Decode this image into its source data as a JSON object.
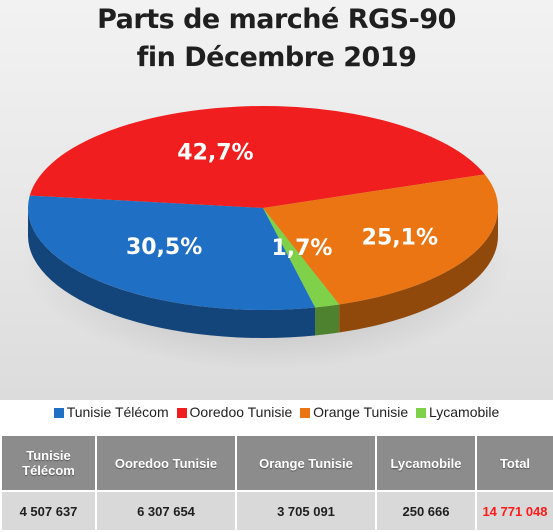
{
  "chart_data": {
    "type": "pie",
    "title_line1": "Parts de marché RGS-90",
    "title_line2": "fin Décembre 2019",
    "slices": [
      {
        "name": "Tunisie Télécom",
        "value": 30.5,
        "label": "30,5%",
        "color": "#1f6fc4"
      },
      {
        "name": "Ooredoo Tunisie",
        "value": 42.7,
        "label": "42,7%",
        "color": "#f01e1e"
      },
      {
        "name": "Orange Tunisie",
        "value": 25.1,
        "label": "25,1%",
        "color": "#ea7512"
      },
      {
        "name": "Lycamobile",
        "value": 1.7,
        "label": "1,7%",
        "color": "#7fd14a"
      }
    ],
    "legend_placement": "bottom"
  },
  "table": {
    "headers": [
      "Tunisie Télécom",
      "Ooredoo Tunisie",
      "Orange Tunisie",
      "Lycamobile",
      "Total"
    ],
    "values": [
      "4 507 637",
      "6 307 654",
      "3 705 091",
      "250 666",
      "14 771 048"
    ],
    "total_color": "#ff1a1a"
  }
}
